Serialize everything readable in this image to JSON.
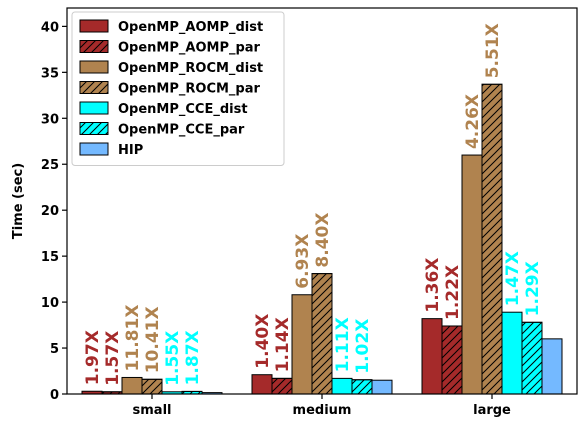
{
  "chart_data": {
    "type": "bar",
    "title": "",
    "xlabel": "",
    "ylabel": "Time (sec)",
    "ylim": [
      0,
      42
    ],
    "yticks": [
      0,
      5,
      10,
      15,
      20,
      25,
      30,
      35,
      40
    ],
    "grid": false,
    "legend_position": "top-left",
    "categories": [
      "small",
      "medium",
      "large"
    ],
    "series": [
      {
        "name": "OpenMP_AOMP_dist",
        "color": "#a52a2a",
        "hatch": false,
        "values": [
          0.3,
          2.1,
          8.2
        ],
        "labels": [
          "1.97X",
          "1.40X",
          "1.36X"
        ]
      },
      {
        "name": "OpenMP_AOMP_par",
        "color": "#a52a2a",
        "hatch": true,
        "values": [
          0.24,
          1.7,
          7.4
        ],
        "labels": [
          "1.57X",
          "1.14X",
          "1.22X"
        ]
      },
      {
        "name": "OpenMP_ROCM_dist",
        "color": "#b0834f",
        "hatch": false,
        "values": [
          1.8,
          10.8,
          26.0
        ],
        "labels": [
          "11.81X",
          "6.93X",
          "4.26X"
        ]
      },
      {
        "name": "OpenMP_ROCM_par",
        "color": "#b0834f",
        "hatch": true,
        "values": [
          1.6,
          13.1,
          33.7
        ],
        "labels": [
          "10.41X",
          "8.40X",
          "5.51X"
        ]
      },
      {
        "name": "OpenMP_CCE_dist",
        "color": "#00ffff",
        "hatch": false,
        "values": [
          0.24,
          1.7,
          8.9
        ],
        "labels": [
          "1.55X",
          "1.11X",
          "1.47X"
        ]
      },
      {
        "name": "OpenMP_CCE_par",
        "color": "#00ffff",
        "hatch": true,
        "values": [
          0.28,
          1.55,
          7.8
        ],
        "labels": [
          "1.87X",
          "1.02X",
          "1.29X"
        ]
      },
      {
        "name": "HIP",
        "color": "#74b9ff",
        "hatch": false,
        "values": [
          0.15,
          1.5,
          6.0
        ],
        "labels": null
      }
    ]
  }
}
